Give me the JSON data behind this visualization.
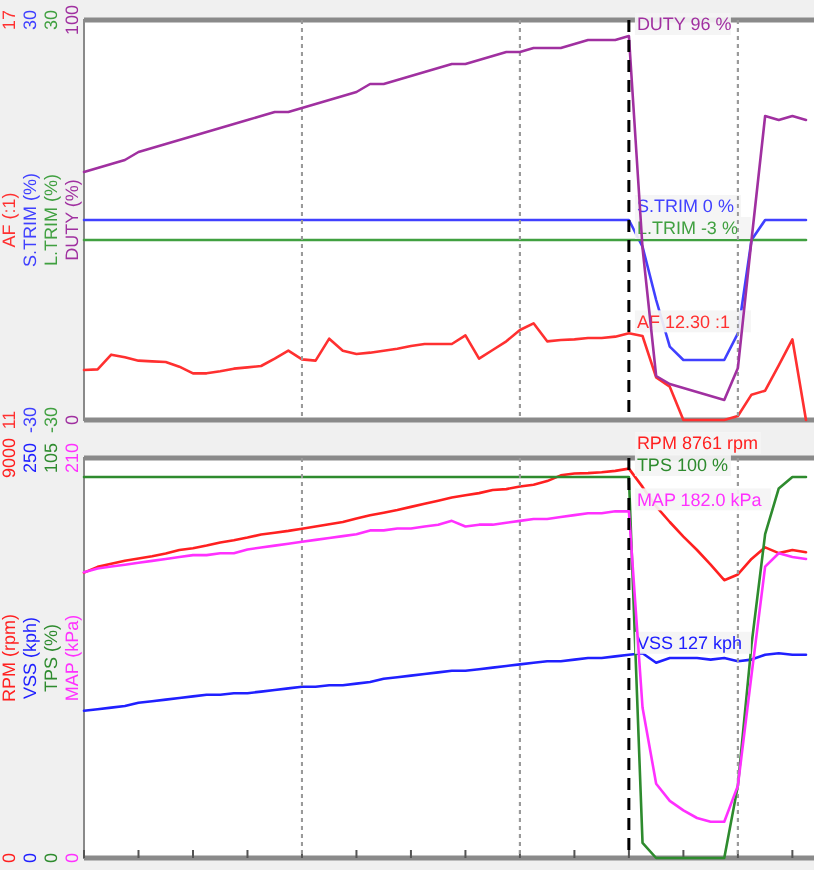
{
  "chart_data": [
    {
      "type": "line",
      "categories": [
        null,
        null,
        null,
        null,
        null,
        null,
        null,
        null,
        null,
        null,
        null,
        null,
        null,
        null,
        null,
        null,
        null,
        null,
        null,
        null,
        null,
        null,
        null,
        null,
        null,
        null,
        null,
        null,
        null,
        null,
        null,
        null,
        null,
        null,
        null,
        null,
        null,
        null,
        null,
        null,
        null,
        null,
        null,
        null,
        null,
        null,
        null,
        null,
        null,
        null,
        null,
        null,
        null,
        null
      ],
      "ylim": [
        11,
        17
      ],
      "yticks": [
        11,
        17
      ],
      "ylabel": "AF (:1)",
      "y2lim": [
        -30,
        30
      ],
      "y2ticks": [
        -30,
        30
      ],
      "y2label": "S.TRIM (%)",
      "y3lim": [
        -30,
        30
      ],
      "y3ticks": [
        -30,
        30
      ],
      "y3label": "L.TRIM (%)",
      "grid": "x",
      "tick_labels": "y",
      "series": [
        {
          "color": "#ff3030",
          "values": [
            11.75,
            11.76,
            11.98,
            11.94,
            11.89,
            11.88,
            11.87,
            11.8,
            11.7,
            11.7,
            11.73,
            11.77,
            11.79,
            11.81,
            11.92,
            12.04,
            11.91,
            11.89,
            12.22,
            12.04,
            11.99,
            12.01,
            12.04,
            12.07,
            12.11,
            12.14,
            12.14,
            12.14,
            12.27,
            11.92,
            12.05,
            12.18,
            12.35,
            12.45,
            12.18,
            12.2,
            12.21,
            12.23,
            12.23,
            12.25,
            12.3,
            12.26,
            11.64,
            11.5,
            11,
            11,
            11,
            11,
            11.06,
            11.38,
            11.44,
            11.82,
            12.21,
            11
          ],
          "value_labels": [
            null,
            null,
            null,
            null,
            null,
            null,
            null,
            null,
            null,
            null,
            null,
            null,
            null,
            null,
            null,
            null,
            null,
            null,
            null,
            null,
            null,
            null,
            null,
            null,
            null,
            null,
            null,
            null,
            null,
            null,
            null,
            null,
            null,
            null,
            null,
            null,
            null,
            null,
            null,
            null,
            "AF 12.30 :1",
            null,
            null,
            null,
            null,
            null,
            null,
            null,
            null,
            null,
            null,
            null,
            null,
            null
          ]
        },
        {
          "axis": "y2",
          "color": "#4040ff",
          "values": [
            0,
            0,
            0,
            0,
            0,
            0,
            0,
            0,
            0,
            0,
            0,
            0,
            0,
            0,
            0,
            0,
            0,
            0,
            0,
            0,
            0,
            0,
            0,
            0,
            0,
            0,
            0,
            0,
            0,
            0,
            0,
            0,
            0,
            0,
            0,
            0,
            0,
            0,
            0,
            0,
            0,
            -4,
            -12,
            -19,
            -21,
            -21,
            -21,
            -21,
            -17,
            -3,
            0,
            0,
            0,
            0
          ],
          "value_labels": [
            null,
            null,
            null,
            null,
            null,
            null,
            null,
            null,
            null,
            null,
            null,
            null,
            null,
            null,
            null,
            null,
            null,
            null,
            null,
            null,
            null,
            null,
            null,
            null,
            null,
            null,
            null,
            null,
            null,
            null,
            null,
            null,
            null,
            null,
            null,
            null,
            null,
            null,
            null,
            null,
            "S.TRIM 0 %",
            null,
            null,
            null,
            null,
            null,
            null,
            null,
            null,
            null,
            null,
            null,
            null,
            null
          ]
        },
        {
          "axis": "y3",
          "color": "#40a040",
          "values": [
            -3,
            -3,
            -3,
            -3,
            -3,
            -3,
            -3,
            -3,
            -3,
            -3,
            -3,
            -3,
            -3,
            -3,
            -3,
            -3,
            -3,
            -3,
            -3,
            -3,
            -3,
            -3,
            -3,
            -3,
            -3,
            -3,
            -3,
            -3,
            -3,
            -3,
            -3,
            -3,
            -3,
            -3,
            -3,
            -3,
            -3,
            -3,
            -3,
            -3,
            -3,
            -3,
            -3,
            -3,
            -3,
            -3,
            -3,
            -3,
            -3,
            -3,
            -3,
            -3,
            -3,
            -3
          ],
          "value_labels": [
            null,
            null,
            null,
            null,
            null,
            null,
            null,
            null,
            null,
            null,
            null,
            null,
            null,
            null,
            null,
            null,
            null,
            null,
            null,
            null,
            null,
            null,
            null,
            null,
            null,
            null,
            null,
            null,
            null,
            null,
            null,
            null,
            null,
            null,
            null,
            null,
            null,
            null,
            null,
            null,
            "L.TRIM -3 %",
            null,
            null,
            null,
            null,
            null,
            null,
            null,
            null,
            null,
            null,
            null,
            null,
            null
          ]
        }
      ]
    },
    {
      "type": "line",
      "categories": [
        null,
        null,
        null,
        null,
        null,
        null,
        null,
        null,
        null,
        null,
        null,
        null,
        null,
        null,
        null,
        null,
        null,
        null,
        null,
        null,
        null,
        null,
        null,
        null,
        null,
        null,
        null,
        null,
        null,
        null,
        null,
        null,
        null,
        null,
        null,
        null,
        null,
        null,
        null,
        null,
        null,
        null,
        null,
        null,
        null,
        null,
        null,
        null,
        null,
        null,
        null,
        null,
        null,
        null
      ],
      "ylim": [
        0,
        100
      ],
      "yticks": [
        0,
        100
      ],
      "ylabel": "DUTY (%)",
      "grid": "x",
      "tick_labels": "y",
      "series": [
        {
          "color": "#a030a0",
          "values": [
            62,
            63,
            64,
            65,
            67,
            68,
            69,
            70,
            71,
            72,
            73,
            74,
            75,
            76,
            77,
            77,
            78,
            79,
            80,
            81,
            82,
            84,
            84,
            85,
            86,
            87,
            88,
            89,
            89,
            90,
            91,
            92,
            92,
            93,
            93,
            93,
            94,
            95,
            95,
            95,
            96,
            43,
            11,
            9,
            8,
            7,
            6,
            5,
            13,
            45,
            76,
            75,
            76,
            75
          ],
          "value_labels": [
            null,
            null,
            null,
            null,
            null,
            null,
            null,
            null,
            null,
            null,
            null,
            null,
            null,
            null,
            null,
            null,
            null,
            null,
            null,
            null,
            null,
            null,
            null,
            null,
            null,
            null,
            null,
            null,
            null,
            null,
            null,
            null,
            null,
            null,
            null,
            null,
            null,
            null,
            null,
            null,
            "DUTY 96 %",
            null,
            null,
            null,
            null,
            null,
            null,
            null,
            null,
            null,
            null,
            null,
            null,
            null
          ]
        }
      ]
    },
    {
      "type": "line",
      "categories": [
        null,
        null,
        null,
        null,
        null,
        null,
        null,
        null,
        null,
        null,
        null,
        null,
        null,
        null,
        null,
        null,
        null,
        null,
        null,
        null,
        null,
        null,
        null,
        null,
        null,
        null,
        null,
        null,
        null,
        null,
        null,
        null,
        null,
        null,
        null,
        null,
        null,
        null,
        null,
        null,
        null,
        null,
        null,
        null,
        null,
        null,
        null,
        null,
        null,
        null,
        null,
        null,
        null,
        null
      ],
      "ylim": [
        0,
        9000
      ],
      "yticks": [
        0,
        9000
      ],
      "ylabel": "RPM (rpm)",
      "y2lim": [
        0,
        250
      ],
      "y2ticks": [
        0,
        250
      ],
      "y2label": "VSS (kph)",
      "y3lim": [
        0,
        105
      ],
      "y3ticks": [
        0,
        105
      ],
      "y3label": "TPS (%)",
      "grid": "x",
      "tick_labels": "y",
      "series": [
        {
          "color": "#ff2020",
          "values": [
            6420,
            6550,
            6620,
            6690,
            6740,
            6790,
            6850,
            6930,
            6970,
            7030,
            7100,
            7150,
            7210,
            7280,
            7320,
            7360,
            7410,
            7460,
            7510,
            7560,
            7640,
            7710,
            7770,
            7830,
            7900,
            7970,
            8040,
            8110,
            8160,
            8210,
            8280,
            8300,
            8360,
            8400,
            8480,
            8610,
            8650,
            8660,
            8680,
            8710,
            8761,
            8350,
            7910,
            7560,
            7230,
            6930,
            6600,
            6250,
            6380,
            6730,
            6990,
            6860,
            6930,
            6880
          ],
          "value_labels": [
            null,
            null,
            null,
            null,
            null,
            null,
            null,
            null,
            null,
            null,
            null,
            null,
            null,
            null,
            null,
            null,
            null,
            null,
            null,
            null,
            null,
            null,
            null,
            null,
            null,
            null,
            null,
            null,
            null,
            null,
            null,
            null,
            null,
            null,
            null,
            null,
            null,
            null,
            null,
            null,
            "RPM 8761 rpm",
            null,
            null,
            null,
            null,
            null,
            null,
            null,
            null,
            null,
            null,
            null,
            null,
            null
          ]
        },
        {
          "axis": "y2",
          "color": "#2020ff",
          "values": [
            92,
            93,
            94,
            95,
            97,
            98,
            99,
            100,
            101,
            102,
            102,
            103,
            103,
            104,
            105,
            106,
            107,
            107,
            108,
            108,
            109,
            110,
            112,
            113,
            114,
            115,
            116,
            117,
            117,
            118,
            119,
            120,
            121,
            122,
            123,
            123,
            124,
            125,
            125,
            126,
            127,
            128,
            122,
            125,
            125,
            125,
            124,
            125,
            123,
            124,
            127,
            128,
            127,
            127
          ],
          "value_labels": [
            null,
            null,
            null,
            null,
            null,
            null,
            null,
            null,
            null,
            null,
            null,
            null,
            null,
            null,
            null,
            null,
            null,
            null,
            null,
            null,
            null,
            null,
            null,
            null,
            null,
            null,
            null,
            null,
            null,
            null,
            null,
            null,
            null,
            null,
            null,
            null,
            null,
            null,
            null,
            null,
            "VSS 127 kph",
            null,
            null,
            null,
            null,
            null,
            null,
            null,
            null,
            null,
            null,
            null,
            null,
            null
          ]
        },
        {
          "axis": "y3",
          "color": "#2e8b2e",
          "values": [
            100,
            100,
            100,
            100,
            100,
            100,
            100,
            100,
            100,
            100,
            100,
            100,
            100,
            100,
            100,
            100,
            100,
            100,
            100,
            100,
            100,
            100,
            100,
            100,
            100,
            100,
            100,
            100,
            100,
            100,
            100,
            100,
            100,
            100,
            100,
            100,
            100,
            100,
            100,
            100,
            100,
            4,
            0,
            0,
            0,
            0,
            0,
            0,
            19,
            56,
            85,
            97,
            100,
            100
          ],
          "value_labels": [
            null,
            null,
            null,
            null,
            null,
            null,
            null,
            null,
            null,
            null,
            null,
            null,
            null,
            null,
            null,
            null,
            null,
            null,
            null,
            null,
            null,
            null,
            null,
            null,
            null,
            null,
            null,
            null,
            null,
            null,
            null,
            null,
            null,
            null,
            null,
            null,
            null,
            null,
            null,
            null,
            "TPS 100 %",
            null,
            null,
            null,
            null,
            null,
            null,
            null,
            null,
            null,
            null,
            null,
            null,
            null
          ]
        }
      ]
    },
    {
      "type": "line",
      "categories": [
        null,
        null,
        null,
        null,
        null,
        null,
        null,
        null,
        null,
        null,
        null,
        null,
        null,
        null,
        null,
        null,
        null,
        null,
        null,
        null,
        null,
        null,
        null,
        null,
        null,
        null,
        null,
        null,
        null,
        null,
        null,
        null,
        null,
        null,
        null,
        null,
        null,
        null,
        null,
        null,
        null,
        null,
        null,
        null,
        null,
        null,
        null,
        null,
        null,
        null,
        null,
        null,
        null,
        null
      ],
      "ylim": [
        0,
        210
      ],
      "yticks": [
        0,
        210
      ],
      "ylabel": "MAP (kPa)",
      "grid": "x",
      "tick_labels": "y",
      "series": [
        {
          "color": "#ff30ff",
          "values": [
            150,
            152,
            153,
            154,
            155,
            156,
            157,
            158,
            159,
            159,
            160,
            160,
            162,
            163,
            164,
            165,
            166,
            167,
            168,
            169,
            170,
            172,
            172,
            173,
            173,
            174,
            175,
            177,
            174,
            175,
            175,
            176,
            177,
            178,
            178,
            179,
            180,
            181,
            181,
            182,
            182,
            79,
            39,
            30,
            25,
            21,
            19,
            19,
            38,
            96,
            153,
            160,
            158,
            157
          ],
          "value_labels": [
            null,
            null,
            null,
            null,
            null,
            null,
            null,
            null,
            null,
            null,
            null,
            null,
            null,
            null,
            null,
            null,
            null,
            null,
            null,
            null,
            null,
            null,
            null,
            null,
            null,
            null,
            null,
            null,
            null,
            null,
            null,
            null,
            null,
            null,
            null,
            null,
            null,
            null,
            null,
            null,
            "MAP 182.0 kPa",
            null,
            null,
            null,
            null,
            null,
            null,
            null,
            null,
            null,
            null,
            null,
            null,
            null
          ]
        }
      ]
    }
  ]
}
